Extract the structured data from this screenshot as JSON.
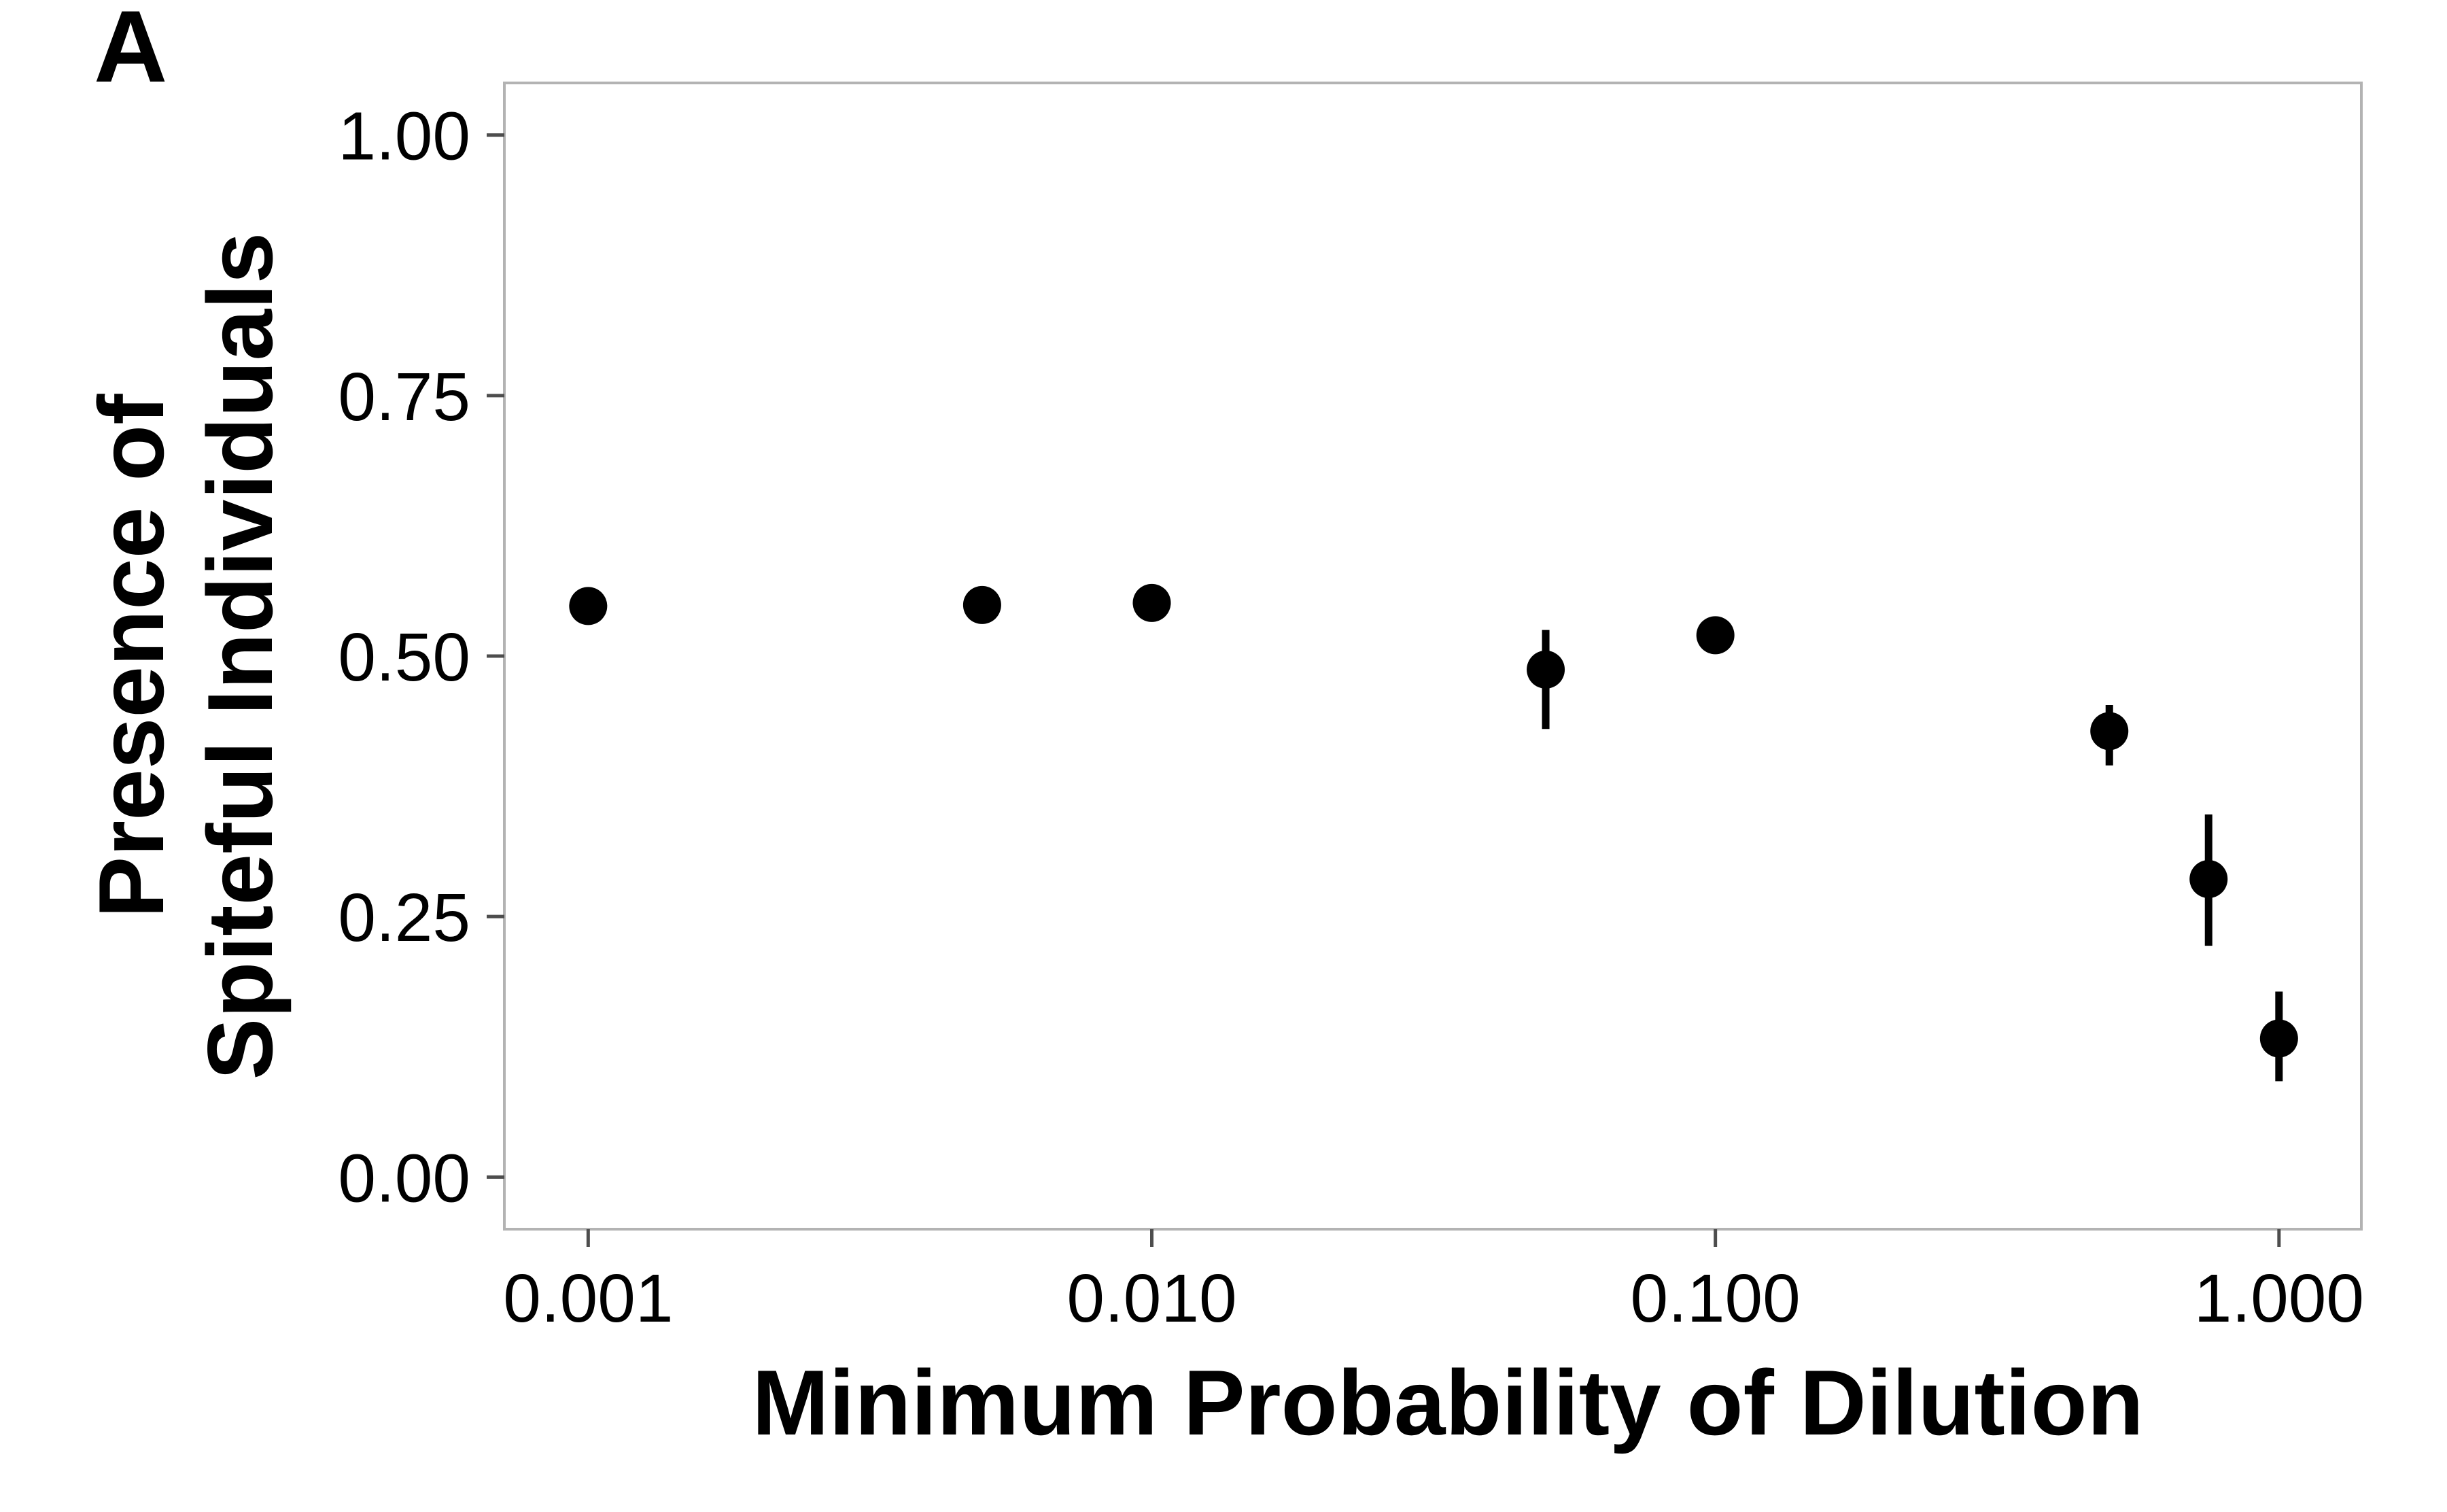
{
  "panel_label": "A",
  "chart_data": {
    "type": "scatter",
    "title": "",
    "xlabel": "Minimum Probability of Dilution",
    "ylabel_lines": [
      "Presence of",
      "Spiteful Individuals"
    ],
    "x_scale": "log10",
    "xlim": [
      0.00071,
      1.4
    ],
    "ylim": [
      -0.05,
      1.05
    ],
    "x_ticks": [
      0.001,
      0.01,
      0.1,
      1.0
    ],
    "x_tick_labels": [
      "0.001",
      "0.010",
      "0.100",
      "1.000"
    ],
    "y_ticks": [
      0.0,
      0.25,
      0.5,
      0.75,
      1.0
    ],
    "y_tick_labels": [
      "0.00",
      "0.25",
      "0.50",
      "0.75",
      "1.00"
    ],
    "grid": false,
    "colors": {
      "point": "#000000",
      "frame": "#b3b3b3",
      "tick": "#4d4d4d"
    },
    "points": [
      {
        "x": 0.001,
        "y": 0.548,
        "lo": 0.543,
        "hi": 0.553
      },
      {
        "x": 0.005,
        "y": 0.549,
        "lo": 0.532,
        "hi": 0.556
      },
      {
        "x": 0.01,
        "y": 0.551,
        "lo": 0.546,
        "hi": 0.556
      },
      {
        "x": 0.05,
        "y": 0.487,
        "lo": 0.43,
        "hi": 0.525
      },
      {
        "x": 0.1,
        "y": 0.52,
        "lo": 0.512,
        "hi": 0.528
      },
      {
        "x": 0.5,
        "y": 0.428,
        "lo": 0.395,
        "hi": 0.453
      },
      {
        "x": 0.75,
        "y": 0.286,
        "lo": 0.222,
        "hi": 0.348
      },
      {
        "x": 1.0,
        "y": 0.133,
        "lo": 0.092,
        "hi": 0.178
      }
    ]
  }
}
